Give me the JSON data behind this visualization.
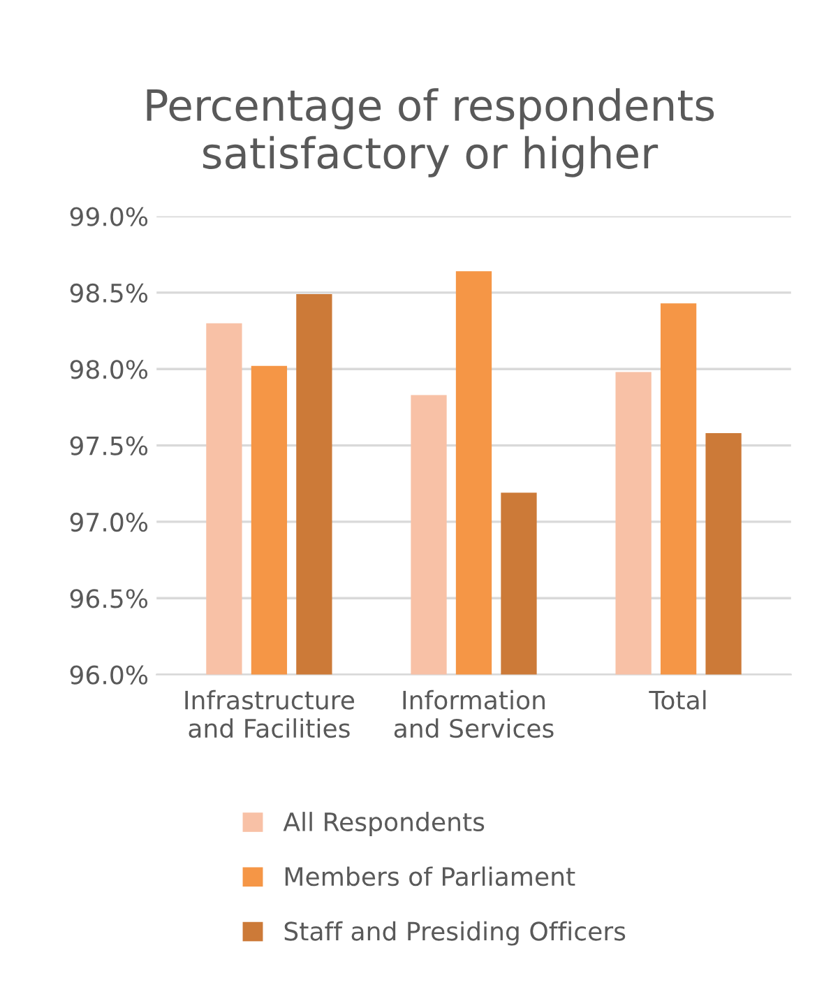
{
  "chart_data": {
    "type": "bar",
    "title": "Percentage of respondents satisfactory or higher",
    "categories": [
      "Infrastructure\nand Facilities",
      "Information\nand Services",
      "Total"
    ],
    "series": [
      {
        "name": "All Respondents",
        "color": "#f8c1a6",
        "values": [
          98.3,
          97.83,
          97.98
        ]
      },
      {
        "name": "Members of Parliament",
        "color": "#f59646",
        "values": [
          98.02,
          98.64,
          98.43
        ]
      },
      {
        "name": "Staff and Presiding Officers",
        "color": "#cc7a38",
        "values": [
          98.49,
          97.19,
          97.58
        ]
      }
    ],
    "ylim": [
      96.0,
      99.0
    ],
    "yticks": [
      {
        "value": 96.0,
        "label": "96.0%"
      },
      {
        "value": 96.5,
        "label": "96.5%"
      },
      {
        "value": 97.0,
        "label": "97.0%"
      },
      {
        "value": 97.5,
        "label": "97.5%"
      },
      {
        "value": 98.0,
        "label": "98.0%"
      },
      {
        "value": 98.5,
        "label": "98.5%"
      },
      {
        "value": 99.0,
        "label": "99.0%"
      }
    ],
    "grid": "y",
    "legend": "bottom"
  }
}
